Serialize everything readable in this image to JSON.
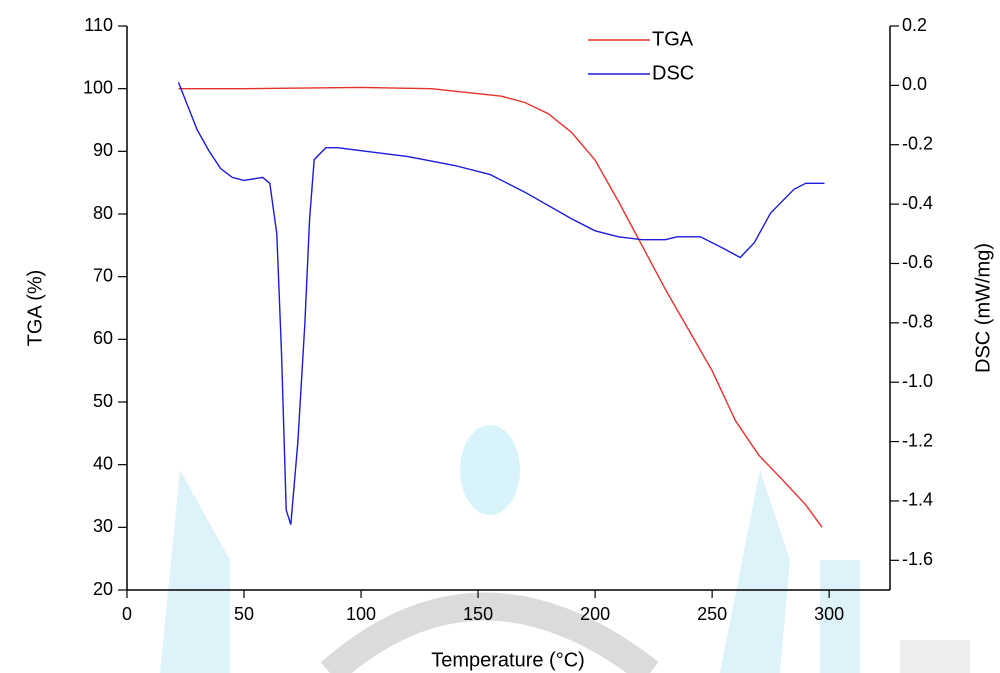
{
  "chart_data": {
    "type": "line",
    "xlabel": "Temperature (°C)",
    "ylabel": "TGA (%)",
    "y2label": "DSC (mW/mg)",
    "xlim": [
      0,
      326
    ],
    "xticks": [
      0,
      50,
      100,
      150,
      200,
      250,
      300
    ],
    "ylim": [
      20,
      110
    ],
    "yticks": [
      20,
      30,
      40,
      50,
      60,
      70,
      80,
      90,
      100,
      110
    ],
    "y2lim": [
      -1.7,
      0.2
    ],
    "y2ticks": [
      {
        "value": -1.6,
        "label": "-1.6"
      },
      {
        "value": -1.4,
        "label": "-1.4"
      },
      {
        "value": -1.2,
        "label": "-1.2"
      },
      {
        "value": -1.0,
        "label": "-1.0"
      },
      {
        "value": -0.8,
        "label": "-0.8"
      },
      {
        "value": -0.6,
        "label": "-0.6"
      },
      {
        "value": -0.4,
        "label": "-0.4"
      },
      {
        "value": -0.2,
        "label": "-0.2"
      },
      {
        "value": 0.0,
        "label": "0.0"
      },
      {
        "value": 0.2,
        "label": "0.2"
      }
    ],
    "legend": "upper right",
    "series": [
      {
        "name": "TGA",
        "color": "#e8302a",
        "x": [
          22,
          50,
          100,
          130,
          150,
          160,
          170,
          180,
          190,
          200,
          210,
          220,
          230,
          240,
          250,
          260,
          270,
          280,
          290,
          297
        ],
        "values": [
          100,
          100,
          100.2,
          100,
          99.2,
          98.8,
          97.8,
          96,
          93,
          88.6,
          82,
          75,
          68,
          61.5,
          55,
          47,
          41.5,
          37.6,
          33.6,
          30
        ]
      },
      {
        "name": "DSC",
        "color": "#1b1bd8",
        "axis": "y2",
        "x": [
          22,
          25,
          30,
          35,
          40,
          45,
          50,
          58,
          61,
          64,
          66,
          68,
          70,
          73,
          76,
          78,
          80,
          85,
          90,
          100,
          120,
          140,
          155,
          170,
          190,
          200,
          210,
          220,
          230,
          235,
          245,
          255,
          262,
          268,
          275,
          285,
          290,
          298
        ],
        "values": [
          0.01,
          -0.05,
          -0.15,
          -0.22,
          -0.28,
          -0.31,
          -0.32,
          -0.31,
          -0.33,
          -0.5,
          -0.9,
          -1.43,
          -1.48,
          -1.2,
          -0.8,
          -0.45,
          -0.25,
          -0.21,
          -0.21,
          -0.22,
          -0.24,
          -0.27,
          -0.3,
          -0.36,
          -0.45,
          -0.49,
          -0.51,
          -0.52,
          -0.52,
          -0.51,
          -0.51,
          -0.55,
          -0.58,
          -0.53,
          -0.43,
          -0.35,
          -0.33,
          -0.33
        ]
      }
    ]
  }
}
